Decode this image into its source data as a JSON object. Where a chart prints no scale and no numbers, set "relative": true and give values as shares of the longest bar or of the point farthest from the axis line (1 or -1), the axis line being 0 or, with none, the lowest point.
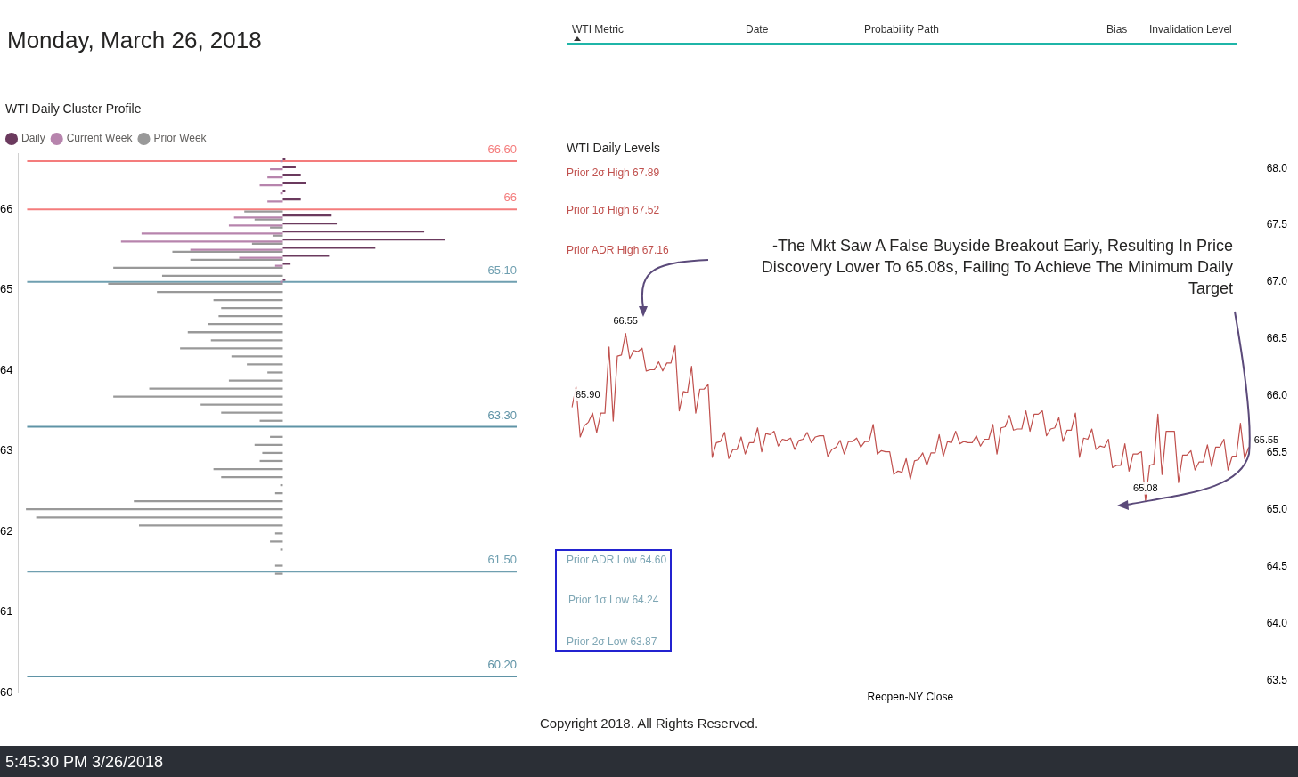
{
  "chart_data": [
    {
      "type": "other",
      "title": "Monday, March 26, 2018",
      "annotations": [
        "WTI Metric",
        "Date",
        "Probability Path",
        "Bias",
        "Invalidation Level"
      ]
    },
    {
      "type": "bar",
      "orientation": "horizontal",
      "relative": true,
      "title": "WTI Daily Cluster Profile",
      "legend": "top left",
      "ylim": [
        60,
        66.7
      ],
      "yticks": [
        60,
        61,
        62,
        63,
        64,
        65,
        66
      ],
      "x": [
        66.6,
        66.5,
        66.4,
        66.3,
        66.2,
        66.1,
        66.0,
        65.9,
        65.8,
        65.7,
        65.6,
        65.5,
        65.4,
        65.3,
        65.2,
        65.1,
        65.0,
        64.9,
        64.8,
        64.7,
        64.6,
        64.5,
        64.4,
        64.3,
        64.2,
        64.1,
        64.0,
        63.9,
        63.8,
        63.7,
        63.6,
        63.5,
        63.4,
        63.3,
        63.2,
        63.1,
        63.0,
        62.9,
        62.8,
        62.7,
        62.6,
        62.5,
        62.4,
        62.3,
        62.2,
        62.1,
        62.0,
        61.9,
        61.8,
        61.7,
        61.6,
        61.5
      ],
      "series": [
        {
          "name": "Daily",
          "color": "#6b3a5e",
          "values": [
            0.01,
            0.05,
            0.07,
            0.09,
            0.01,
            0.07,
            null,
            0.19,
            0.21,
            0.55,
            0.63,
            0.36,
            0.18,
            0.03,
            null,
            0.01,
            null,
            null,
            null,
            null,
            null,
            null,
            null,
            null,
            null,
            null,
            null,
            null,
            null,
            null,
            null,
            null,
            null,
            null,
            null,
            null,
            null,
            null,
            null,
            null,
            null,
            null,
            null,
            null,
            null,
            null,
            null,
            null,
            null,
            null,
            null,
            null
          ]
        },
        {
          "name": "Current Week",
          "color": "#b784ad",
          "values": [
            -0.01,
            -0.05,
            -0.06,
            -0.09,
            -0.01,
            -0.06,
            null,
            -0.19,
            -0.21,
            -0.55,
            -0.63,
            -0.36,
            -0.17,
            -0.03,
            null,
            -0.01,
            null,
            null,
            null,
            null,
            null,
            null,
            null,
            null,
            null,
            null,
            null,
            null,
            null,
            null,
            null,
            null,
            null,
            null,
            null,
            null,
            null,
            null,
            null,
            null,
            null,
            null,
            null,
            null,
            null,
            null,
            null,
            null,
            null,
            null,
            null,
            null
          ]
        },
        {
          "name": "Prior Week",
          "color": "#999999",
          "values": [
            null,
            null,
            null,
            null,
            null,
            null,
            -0.15,
            -0.11,
            -0.05,
            -0.04,
            -0.12,
            -0.43,
            -0.36,
            -0.66,
            -0.47,
            -0.68,
            -0.49,
            -0.27,
            -0.24,
            -0.25,
            -0.29,
            -0.37,
            -0.28,
            -0.4,
            -0.2,
            -0.14,
            -0.06,
            -0.21,
            -0.52,
            -0.66,
            -0.32,
            -0.24,
            -0.09,
            null,
            -0.05,
            -0.11,
            -0.08,
            -0.09,
            -0.27,
            -0.24,
            -0.01,
            -0.03,
            -0.58,
            -1,
            -0.96,
            -0.56,
            -0.03,
            -0.05,
            -0.01,
            null,
            -0.03,
            -0.03
          ]
        }
      ],
      "ref_lines": [
        {
          "axis": "y",
          "value": 66.6,
          "label": "66.60",
          "color": "#f47c7c"
        },
        {
          "axis": "y",
          "value": 66,
          "label": "66",
          "color": "#f47c7c"
        },
        {
          "axis": "y",
          "value": 65.1,
          "label": "65.10",
          "color": "#6f9fb0"
        },
        {
          "axis": "y",
          "value": 63.3,
          "label": "63.30",
          "color": "#5f93a6"
        },
        {
          "axis": "y",
          "value": 61.5,
          "label": "61.50",
          "color": "#6f9fb0"
        },
        {
          "axis": "y",
          "value": 60.2,
          "label": "60.20",
          "color": "#5f93a6"
        }
      ]
    },
    {
      "type": "line",
      "title": "WTI Daily Levels",
      "xlabel": "Reopen-NY Close",
      "ylim": [
        63.5,
        68
      ],
      "yticks": [
        {
          "value": 63.5,
          "label": "63.5"
        },
        {
          "value": 64,
          "label": "64.0"
        },
        {
          "value": 64.5,
          "label": "64.5"
        },
        {
          "value": 65,
          "label": "65.0"
        },
        {
          "value": 65.5,
          "label": "65.5"
        },
        {
          "value": 66,
          "label": "66.0"
        },
        {
          "value": 66.5,
          "label": "66.5"
        },
        {
          "value": 67,
          "label": "67.0"
        },
        {
          "value": 67.5,
          "label": "67.5"
        },
        {
          "value": 68,
          "label": "68.0"
        }
      ],
      "annotations": [
        "Prior 2σ High 67.89",
        "Prior 1σ High 67.52",
        "Prior ADR High 67.16",
        "Prior ADR Low 64.60",
        "Prior 1σ Low 64.24",
        "Prior 2σ Low 63.87",
        "-The Mkt Saw A False Buyside Breakout Early, Resulting In Price Discovery Lower To 65.08s, Failing To Achieve The Minimum Daily Target"
      ],
      "categories": [
        null,
        null,
        null,
        null,
        null,
        null,
        null,
        null,
        null,
        null,
        null,
        null,
        null,
        null,
        null,
        null,
        null,
        null,
        null,
        null,
        null,
        null,
        null,
        null,
        null,
        null,
        null,
        null,
        null,
        null,
        null,
        null,
        null,
        null,
        null,
        null,
        null,
        null,
        null,
        null,
        null,
        null,
        null,
        null,
        null,
        null,
        null,
        null,
        null,
        null,
        null,
        null,
        null,
        null,
        null,
        null,
        null,
        null,
        null,
        null,
        null,
        null,
        null,
        null,
        null,
        null,
        null,
        null,
        null,
        null,
        null,
        null,
        null,
        null,
        null,
        null,
        null,
        null,
        null,
        null,
        null,
        null,
        null,
        null,
        null,
        null,
        null,
        null,
        null,
        null,
        null,
        null,
        null,
        null,
        null,
        null,
        null,
        null,
        null,
        null,
        null,
        null,
        null,
        null,
        null,
        null,
        null,
        null,
        null,
        null,
        null,
        null,
        null,
        null,
        null,
        null,
        null,
        null,
        null,
        null,
        null,
        null,
        null,
        null,
        null,
        null,
        null,
        null,
        null,
        null,
        null,
        null,
        null,
        null,
        null,
        null,
        null,
        null,
        null,
        null,
        null,
        null,
        null,
        null,
        null,
        null,
        null,
        null,
        null,
        null,
        null,
        null,
        null,
        null,
        null,
        null,
        null,
        null,
        null,
        null,
        null,
        null,
        null,
        null,
        null
      ],
      "series": [
        {
          "color": "#c0504d",
          "values": [
            65.9,
            66.08,
            65.64,
            65.74,
            65.77,
            65.85,
            65.68,
            65.85,
            65.85,
            66.43,
            65.78,
            66.35,
            66.36,
            66.55,
            66.33,
            66.4,
            66.39,
            66.42,
            66.22,
            66.23,
            66.23,
            66.3,
            66.22,
            66.29,
            66.29,
            66.44,
            65.87,
            66.04,
            66.03,
            66.26,
            65.85,
            66.06,
            66.06,
            66.1,
            65.46,
            65.59,
            65.6,
            65.68,
            65.45,
            65.53,
            65.53,
            65.64,
            65.49,
            65.59,
            65.59,
            65.72,
            65.51,
            65.67,
            65.66,
            65.69,
            65.56,
            65.62,
            65.61,
            65.63,
            65.53,
            65.61,
            65.62,
            65.68,
            65.59,
            65.64,
            65.65,
            65.65,
            65.47,
            65.53,
            65.55,
            65.61,
            65.49,
            65.6,
            65.6,
            65.63,
            65.55,
            65.6,
            65.6,
            65.75,
            65.49,
            65.52,
            65.51,
            65.51,
            65.31,
            65.34,
            65.33,
            65.45,
            65.27,
            65.43,
            65.44,
            65.5,
            65.39,
            65.5,
            65.5,
            65.66,
            65.47,
            65.6,
            65.59,
            65.69,
            65.58,
            65.6,
            65.59,
            65.59,
            65.65,
            65.56,
            65.62,
            65.62,
            65.75,
            65.49,
            65.72,
            65.73,
            65.83,
            65.7,
            65.71,
            65.71,
            65.87,
            65.69,
            65.84,
            65.84,
            65.87,
            65.65,
            65.71,
            65.72,
            65.81,
            65.6,
            65.7,
            65.7,
            65.85,
            65.46,
            65.63,
            65.62,
            65.71,
            65.53,
            65.56,
            65.55,
            65.62,
            65.37,
            65.39,
            65.39,
            65.58,
            65.34,
            65.49,
            65.49,
            65.51,
            65.08,
            65.39,
            65.4,
            65.84,
            65.31,
            65.69,
            65.69,
            65.69,
            65.24,
            65.48,
            65.48,
            65.52,
            65.35,
            65.42,
            65.42,
            65.57,
            65.38,
            65.55,
            65.55,
            65.62,
            65.35,
            65.47,
            65.47,
            65.76,
            65.45,
            65.55
          ],
          "value_labels": [
            "65.90",
            null,
            null,
            null,
            null,
            null,
            null,
            null,
            null,
            null,
            null,
            null,
            null,
            "66.55",
            null,
            null,
            null,
            null,
            null,
            null,
            null,
            null,
            null,
            null,
            null,
            null,
            null,
            null,
            null,
            null,
            null,
            null,
            null,
            null,
            null,
            null,
            null,
            null,
            null,
            null,
            null,
            null,
            null,
            null,
            null,
            null,
            null,
            null,
            null,
            null,
            null,
            null,
            null,
            null,
            null,
            null,
            null,
            null,
            null,
            null,
            null,
            null,
            null,
            null,
            null,
            null,
            null,
            null,
            null,
            null,
            null,
            null,
            null,
            null,
            null,
            null,
            null,
            null,
            null,
            null,
            null,
            null,
            null,
            null,
            null,
            null,
            null,
            null,
            null,
            null,
            null,
            null,
            null,
            null,
            null,
            null,
            null,
            null,
            null,
            null,
            null,
            null,
            null,
            null,
            null,
            null,
            null,
            null,
            null,
            null,
            null,
            null,
            null,
            null,
            null,
            null,
            null,
            null,
            null,
            null,
            null,
            null,
            null,
            null,
            null,
            null,
            null,
            null,
            null,
            null,
            null,
            null,
            null,
            null,
            null,
            null,
            null,
            null,
            null,
            "65.08",
            null,
            null,
            null,
            null,
            null,
            null,
            null,
            null,
            null,
            null,
            null,
            null,
            null,
            null,
            null,
            null,
            null,
            null,
            null,
            null,
            null,
            null,
            null,
            null,
            "65.55"
          ]
        }
      ]
    },
    {
      "type": "other",
      "annotations": [
        "Copyright 2018. All Rights Reserved."
      ]
    },
    {
      "type": "other",
      "title": "5:45:30 PM 3/26/2018"
    }
  ]
}
